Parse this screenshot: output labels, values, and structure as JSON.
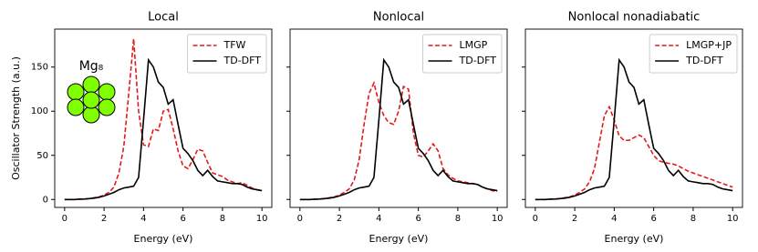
{
  "chart_data": [
    {
      "type": "line",
      "title": "Local",
      "xlabel": "Energy (eV)",
      "ylabel": "Oscillator Strength (a.u.)",
      "annotation": "Mg₈",
      "legend": "upper right",
      "x": [
        0,
        0.25,
        0.5,
        0.75,
        1,
        1.25,
        1.5,
        1.75,
        2,
        2.25,
        2.5,
        2.75,
        3,
        3.25,
        3.5,
        3.75,
        4,
        4.25,
        4.5,
        4.75,
        5,
        5.25,
        5.5,
        5.75,
        6,
        6.25,
        6.5,
        6.75,
        7,
        7.25,
        7.5,
        7.75,
        8,
        8.25,
        8.5,
        8.75,
        9,
        9.25,
        9.5,
        9.75,
        10
      ],
      "series": [
        {
          "name": "TFW",
          "color": "#e31a1c",
          "style": "dashed",
          "values": [
            0,
            0,
            0,
            0.3,
            0.5,
            1,
            2,
            3,
            5,
            8,
            14,
            30,
            60,
            120,
            182,
            100,
            62,
            60,
            80,
            78,
            100,
            102,
            80,
            55,
            38,
            35,
            45,
            57,
            55,
            42,
            30,
            28,
            26,
            22,
            20,
            18,
            19,
            16,
            13,
            11,
            10
          ]
        },
        {
          "name": "TD-DFT",
          "color": "#000000",
          "style": "solid",
          "values": [
            0,
            0,
            0,
            0.3,
            0.5,
            1,
            1.5,
            2.5,
            4,
            6,
            8,
            11,
            13,
            14,
            15,
            25,
            90,
            158,
            150,
            133,
            127,
            108,
            113,
            85,
            58,
            52,
            44,
            33,
            27,
            33,
            26,
            21,
            20,
            19,
            18,
            18,
            17,
            14,
            12,
            11,
            10
          ]
        }
      ],
      "xlim": [
        -0.5,
        10.5
      ],
      "ylim": [
        -9,
        193
      ],
      "xticks": [
        0,
        2,
        4,
        6,
        8,
        10
      ],
      "yticks": [
        0,
        50,
        100,
        150
      ]
    },
    {
      "type": "line",
      "title": "Nonlocal",
      "xlabel": "Energy (eV)",
      "legend": "upper right",
      "x": [
        0,
        0.25,
        0.5,
        0.75,
        1,
        1.25,
        1.5,
        1.75,
        2,
        2.25,
        2.5,
        2.75,
        3,
        3.25,
        3.5,
        3.75,
        4,
        4.25,
        4.5,
        4.75,
        5,
        5.25,
        5.5,
        5.75,
        6,
        6.25,
        6.5,
        6.75,
        7,
        7.25,
        7.5,
        7.75,
        8,
        8.25,
        8.5,
        8.75,
        9,
        9.25,
        9.5,
        9.75,
        10
      ],
      "series": [
        {
          "name": "LMGP",
          "color": "#e31a1c",
          "style": "dashed",
          "values": [
            0,
            0,
            0,
            0.3,
            0.5,
            1,
            2,
            3,
            5,
            8,
            12,
            22,
            45,
            85,
            120,
            132,
            110,
            95,
            87,
            85,
            100,
            128,
            125,
            75,
            50,
            48,
            55,
            63,
            55,
            35,
            28,
            24,
            21,
            20,
            19,
            18,
            17,
            14,
            12,
            10,
            9
          ]
        },
        {
          "name": "TD-DFT",
          "color": "#000000",
          "style": "solid",
          "values": [
            0,
            0,
            0,
            0.3,
            0.5,
            1,
            1.5,
            2.5,
            4,
            6,
            8,
            11,
            13,
            14,
            15,
            25,
            90,
            158,
            150,
            133,
            127,
            108,
            113,
            85,
            58,
            52,
            44,
            33,
            27,
            33,
            26,
            21,
            20,
            19,
            18,
            18,
            17,
            14,
            12,
            11,
            10
          ]
        }
      ],
      "xlim": [
        -0.5,
        10.5
      ],
      "ylim": [
        -9,
        193
      ],
      "xticks": [
        0,
        2,
        4,
        6,
        8,
        10
      ]
    },
    {
      "type": "line",
      "title": "Nonlocal nonadiabatic",
      "xlabel": "Energy (eV)",
      "legend": "upper right",
      "x": [
        0,
        0.25,
        0.5,
        0.75,
        1,
        1.25,
        1.5,
        1.75,
        2,
        2.25,
        2.5,
        2.75,
        3,
        3.25,
        3.5,
        3.75,
        4,
        4.25,
        4.5,
        4.75,
        5,
        5.25,
        5.5,
        5.75,
        6,
        6.25,
        6.5,
        6.75,
        7,
        7.25,
        7.5,
        7.75,
        8,
        8.25,
        8.5,
        8.75,
        9,
        9.25,
        9.5,
        9.75,
        10
      ],
      "series": [
        {
          "name": "LMGP+JP",
          "color": "#e31a1c",
          "style": "dashed",
          "values": [
            0,
            0,
            0,
            0.3,
            0.5,
            1,
            2,
            3,
            5,
            8,
            12,
            20,
            35,
            65,
            95,
            105,
            90,
            72,
            67,
            67,
            70,
            73,
            70,
            60,
            50,
            44,
            42,
            41,
            40,
            38,
            35,
            32,
            30,
            28,
            26,
            24,
            22,
            20,
            18,
            16,
            14
          ]
        },
        {
          "name": "TD-DFT",
          "color": "#000000",
          "style": "solid",
          "values": [
            0,
            0,
            0,
            0.3,
            0.5,
            1,
            1.5,
            2.5,
            4,
            6,
            8,
            11,
            13,
            14,
            15,
            25,
            90,
            158,
            150,
            133,
            127,
            108,
            113,
            85,
            58,
            52,
            44,
            33,
            27,
            33,
            26,
            21,
            20,
            19,
            18,
            18,
            17,
            14,
            12,
            11,
            10
          ]
        }
      ],
      "xlim": [
        -0.5,
        10.5
      ],
      "ylim": [
        -9,
        193
      ],
      "xticks": [
        0,
        2,
        4,
        6,
        8,
        10
      ]
    }
  ]
}
